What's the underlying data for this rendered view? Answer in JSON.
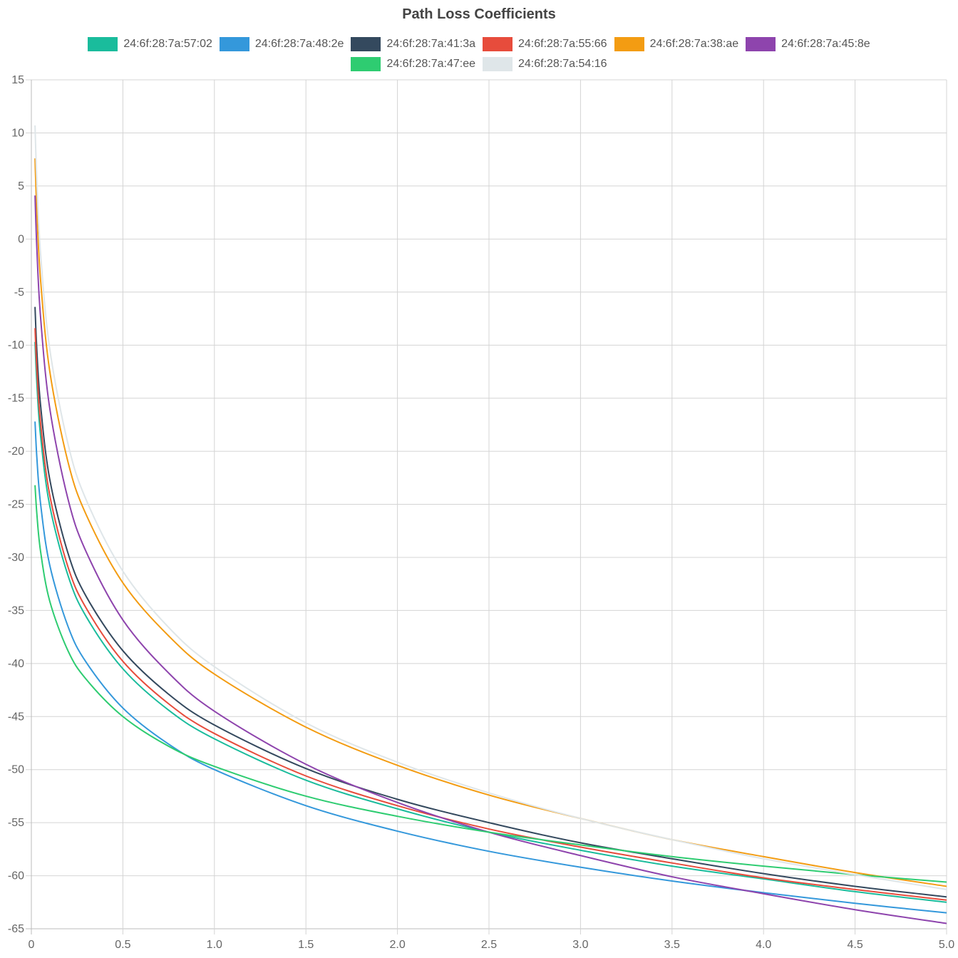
{
  "chart_data": {
    "type": "line",
    "title": "Path Loss Coefficients",
    "xlabel": "",
    "ylabel": "",
    "xlim": [
      0,
      5
    ],
    "ylim": [
      -65,
      15
    ],
    "x_ticks": [
      "0",
      "0.5",
      "1.0",
      "1.5",
      "2.0",
      "2.5",
      "3.0",
      "3.5",
      "4.0",
      "4.5",
      "5.0"
    ],
    "y_ticks": [
      "15",
      "10",
      "5",
      "0",
      "-5",
      "-10",
      "-15",
      "-20",
      "-25",
      "-30",
      "-35",
      "-40",
      "-45",
      "-50",
      "-55",
      "-60",
      "-65"
    ],
    "grid": true,
    "legend_position": "top",
    "x": [
      0.02,
      0.03,
      0.05,
      0.1,
      0.2,
      0.3,
      0.5,
      0.75,
      1,
      1.5,
      2,
      2.5,
      3,
      3.5,
      4,
      4.5,
      5
    ],
    "series": [
      {
        "name": "24:6f:28:7a:57:02",
        "color": "#1abc9c",
        "values": [
          -9.7,
          -13.6,
          -18.5,
          -25.1,
          -31.7,
          -35.6,
          -40.5,
          -44.4,
          -47.1,
          -51.0,
          -53.7,
          -55.9,
          -57.6,
          -59.1,
          -60.3,
          -61.5,
          -62.5
        ]
      },
      {
        "name": "24:6f:28:7a:48:2e",
        "color": "#3498db",
        "values": [
          -17.2,
          -20.6,
          -24.9,
          -30.7,
          -36.5,
          -39.9,
          -44.2,
          -47.6,
          -50.0,
          -53.4,
          -55.8,
          -57.7,
          -59.2,
          -60.5,
          -61.6,
          -62.6,
          -63.5
        ]
      },
      {
        "name": "24:6f:28:7a:41:3a",
        "color": "#34495e",
        "values": [
          -6.4,
          -10.5,
          -15.6,
          -22.6,
          -29.6,
          -33.7,
          -38.8,
          -42.9,
          -45.8,
          -49.9,
          -52.8,
          -55.0,
          -56.9,
          -58.4,
          -59.8,
          -61.0,
          -62.0
        ]
      },
      {
        "name": "24:6f:28:7a:55:66",
        "color": "#e74c3c",
        "values": [
          -8.4,
          -12.3,
          -17.3,
          -24.1,
          -30.9,
          -34.8,
          -39.8,
          -43.8,
          -46.6,
          -50.6,
          -53.4,
          -55.6,
          -57.3,
          -58.8,
          -60.2,
          -61.3,
          -62.3
        ]
      },
      {
        "name": "24:6f:28:7a:38:ae",
        "color": "#f39c12",
        "values": [
          7.6,
          2.6,
          -3.8,
          -12.4,
          -21.0,
          -26.0,
          -32.4,
          -37.4,
          -41.0,
          -46.0,
          -49.6,
          -52.4,
          -54.6,
          -56.6,
          -58.2,
          -59.7,
          -61.0
        ]
      },
      {
        "name": "24:6f:28:7a:45:8e",
        "color": "#8e44ad",
        "values": [
          4.1,
          -0.9,
          -7.3,
          -15.9,
          -24.5,
          -29.5,
          -35.9,
          -40.9,
          -44.5,
          -49.5,
          -53.1,
          -55.9,
          -58.1,
          -60.1,
          -61.7,
          -63.2,
          -64.5
        ]
      },
      {
        "name": "24:6f:28:7a:47:ee",
        "color": "#2ecc71",
        "values": [
          -23.2,
          -25.9,
          -29.4,
          -34.1,
          -38.8,
          -41.5,
          -45.0,
          -47.8,
          -49.7,
          -52.5,
          -54.4,
          -55.9,
          -57.1,
          -58.2,
          -59.1,
          -59.9,
          -60.6
        ]
      },
      {
        "name": "24:6f:28:7a:54:16",
        "color": "#dfe6e9",
        "values": [
          10.7,
          5.4,
          -1.3,
          -10.3,
          -19.3,
          -24.6,
          -31.3,
          -36.6,
          -40.3,
          -45.6,
          -49.3,
          -52.2,
          -54.6,
          -56.6,
          -58.4,
          -59.9,
          -61.3
        ]
      }
    ]
  }
}
